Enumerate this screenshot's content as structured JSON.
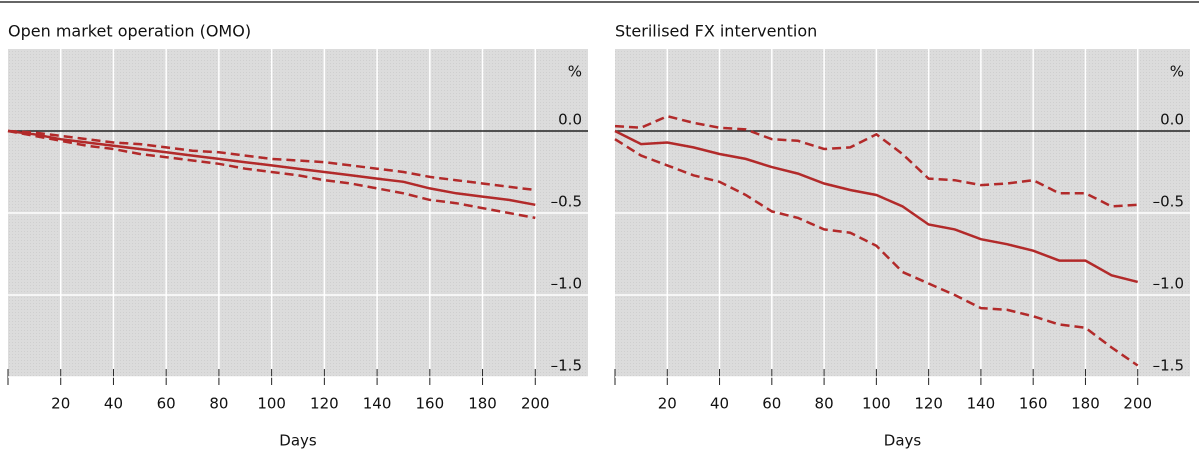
{
  "chart_data": [
    {
      "type": "line",
      "title": "Open market operation (OMO)",
      "x_label": "Days",
      "y_unit": "%",
      "x": [
        0,
        10,
        20,
        30,
        40,
        50,
        60,
        70,
        80,
        90,
        100,
        110,
        120,
        130,
        140,
        150,
        160,
        170,
        180,
        190,
        200
      ],
      "xlim": [
        0,
        220
      ],
      "xticks": [
        20,
        40,
        60,
        80,
        100,
        120,
        140,
        160,
        180,
        200
      ],
      "ylim": [
        -1.5,
        0.5
      ],
      "yticks": [
        {
          "value": 0,
          "label": "0.0"
        },
        {
          "value": -0.5,
          "label": "–0.5"
        },
        {
          "value": -1,
          "label": "–1.0"
        },
        {
          "value": -1.5,
          "label": "–1.5"
        }
      ],
      "grid": true,
      "series": [
        {
          "color": "#b22a2a",
          "dashed": false,
          "values": [
            0,
            -0.02,
            -0.05,
            -0.07,
            -0.09,
            -0.11,
            -0.13,
            -0.15,
            -0.17,
            -0.19,
            -0.21,
            -0.23,
            -0.25,
            -0.27,
            -0.29,
            -0.31,
            -0.35,
            -0.38,
            -0.4,
            -0.42,
            -0.45
          ]
        },
        {
          "color": "#b22a2a",
          "dashed": true,
          "values": [
            0,
            -0.01,
            -0.03,
            -0.05,
            -0.07,
            -0.08,
            -0.1,
            -0.12,
            -0.13,
            -0.15,
            -0.17,
            -0.18,
            -0.19,
            -0.21,
            -0.23,
            -0.25,
            -0.28,
            -0.3,
            -0.32,
            -0.34,
            -0.36
          ]
        },
        {
          "color": "#b22a2a",
          "dashed": true,
          "values": [
            0,
            -0.03,
            -0.06,
            -0.09,
            -0.11,
            -0.14,
            -0.16,
            -0.18,
            -0.2,
            -0.23,
            -0.25,
            -0.27,
            -0.3,
            -0.32,
            -0.35,
            -0.38,
            -0.42,
            -0.44,
            -0.47,
            -0.5,
            -0.53
          ]
        }
      ]
    },
    {
      "type": "line",
      "title": "Sterilised FX intervention",
      "x_label": "Days",
      "y_unit": "%",
      "x": [
        0,
        10,
        20,
        30,
        40,
        50,
        60,
        70,
        80,
        90,
        100,
        110,
        120,
        130,
        140,
        150,
        160,
        170,
        180,
        190,
        200
      ],
      "xlim": [
        0,
        220
      ],
      "xticks": [
        20,
        40,
        60,
        80,
        100,
        120,
        140,
        160,
        180,
        200
      ],
      "ylim": [
        -1.5,
        0.5
      ],
      "yticks": [
        {
          "value": 0,
          "label": "0.0"
        },
        {
          "value": -0.5,
          "label": "–0.5"
        },
        {
          "value": -1,
          "label": "–1.0"
        },
        {
          "value": -1.5,
          "label": "–1.5"
        }
      ],
      "grid": true,
      "series": [
        {
          "color": "#b22a2a",
          "dashed": false,
          "values": [
            0,
            -0.08,
            -0.07,
            -0.1,
            -0.14,
            -0.17,
            -0.22,
            -0.26,
            -0.32,
            -0.36,
            -0.39,
            -0.46,
            -0.57,
            -0.6,
            -0.66,
            -0.69,
            -0.73,
            -0.79,
            -0.79,
            -0.88,
            -0.92
          ]
        },
        {
          "color": "#b22a2a",
          "dashed": true,
          "values": [
            0.03,
            0.02,
            0.09,
            0.05,
            0.02,
            0.01,
            -0.05,
            -0.06,
            -0.11,
            -0.1,
            -0.02,
            -0.14,
            -0.29,
            -0.3,
            -0.33,
            -0.32,
            -0.3,
            -0.38,
            -0.38,
            -0.46,
            -0.45
          ]
        },
        {
          "color": "#b22a2a",
          "dashed": true,
          "values": [
            -0.05,
            -0.15,
            -0.21,
            -0.27,
            -0.31,
            -0.39,
            -0.49,
            -0.53,
            -0.6,
            -0.62,
            -0.7,
            -0.86,
            -0.93,
            -1.0,
            -1.08,
            -1.09,
            -1.13,
            -1.18,
            -1.2,
            -1.32,
            -1.43
          ]
        }
      ]
    }
  ]
}
